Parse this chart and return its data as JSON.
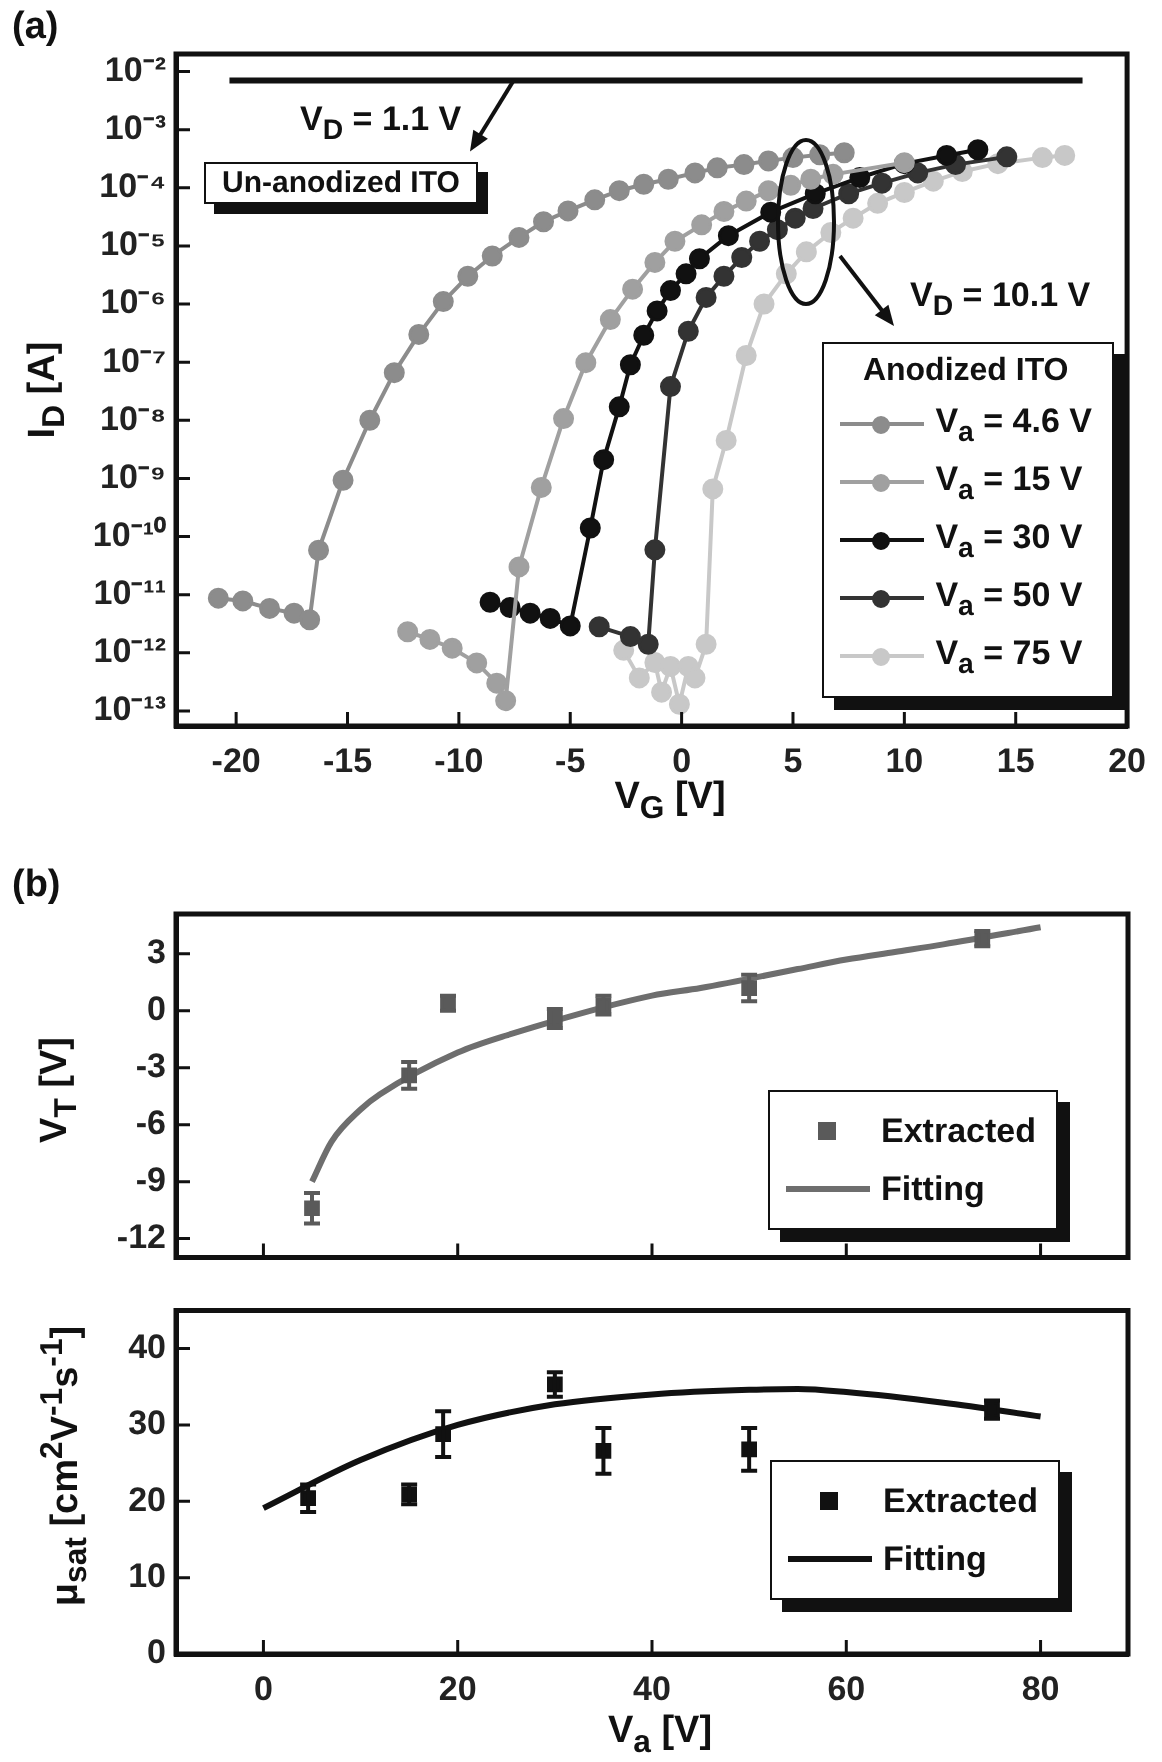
{
  "chart_data": [
    {
      "type": "line",
      "xlabel": "V$_{G}$ [V]",
      "ylabel": "I$_{D}$ [A]",
      "legend_title": "Anodized ITO",
      "legend": "right",
      "log": "y",
      "marker": "circle",
      "xlim": [
        -22.7,
        20
      ],
      "xticks": [
        -20,
        -15,
        -10,
        -5,
        0,
        5,
        10,
        15,
        20
      ],
      "ylim": [
        5.5e-14,
        0.02
      ],
      "yticks": [
        {
          "value": 0.01,
          "label": "10⁻²"
        },
        {
          "value": 0.001,
          "label": "10⁻³"
        },
        {
          "value": 0.0001,
          "label": "10⁻⁴"
        },
        {
          "value": 1e-05,
          "label": "10⁻⁵"
        },
        {
          "value": 1e-06,
          "label": "10⁻⁶"
        },
        {
          "value": 1e-07,
          "label": "10⁻⁷"
        },
        {
          "value": 1e-08,
          "label": "10⁻⁸"
        },
        {
          "value": 1e-09,
          "label": "10⁻⁹"
        },
        {
          "value": 1e-10,
          "label": "10⁻¹⁰"
        },
        {
          "value": 1e-11,
          "label": "10⁻¹¹"
        },
        {
          "value": 1e-12,
          "label": "10⁻¹²"
        },
        {
          "value": 1e-13,
          "label": "10⁻¹³"
        }
      ],
      "annotations": [
        "(a)",
        {
          "text": "V$_{D}$ = 1.1 V",
          "x": -7.7,
          "y": 0.007
        },
        "Un-anodized ITO",
        "V$_{D}$ = 10.1 V"
      ],
      "series": [
        {
          "color": "#111111",
          "marker": "none",
          "x": [
            -20.3,
            18
          ],
          "values": [
            0.007,
            0.007
          ]
        },
        {
          "name": "V$_{a}$ = 4.6 V",
          "color": "#8c8c8c",
          "x": [
            -20.8,
            -19.7,
            -18.5,
            -17.4,
            -16.7,
            -16.3,
            -15.2,
            -14.0,
            -12.9,
            -11.8,
            -10.7,
            -9.6,
            -8.5,
            -7.3,
            -6.2,
            -5.1,
            -3.9,
            -2.8,
            -1.7,
            -0.6,
            0.6,
            1.6,
            2.8,
            3.9,
            5.0,
            6.2,
            7.3
          ],
          "values": [
            8.7e-12,
            7.8e-12,
            5.8e-12,
            4.8e-12,
            3.7e-12,
            5.8e-11,
            9.3e-10,
            1e-08,
            6.6e-08,
            3e-07,
            1.1e-06,
            3e-06,
            6.7e-06,
            1.4e-05,
            2.6e-05,
            4e-05,
            6.2e-05,
            8.9e-05,
            0.000115,
            0.00014,
            0.00018,
            0.00022,
            0.00025,
            0.00029,
            0.00033,
            0.00037,
            0.0004
          ]
        },
        {
          "name": "V$_{a}$ = 15 V",
          "color": "#a0a0a0",
          "x": [
            -12.3,
            -11.3,
            -10.3,
            -9.2,
            -8.3,
            -7.9,
            -7.3,
            -6.3,
            -5.3,
            -4.3,
            -3.2,
            -2.2,
            -1.2,
            -0.3,
            0.9,
            1.9,
            2.9,
            3.9,
            4.9,
            5.8,
            6.8,
            10.0
          ],
          "values": [
            2.3e-12,
            1.7e-12,
            1.2e-12,
            6.7e-13,
            3e-13,
            1.5e-13,
            3e-11,
            7e-10,
            1.07e-08,
            9.8e-08,
            5.4e-07,
            1.8e-06,
            5.2e-06,
            1.2e-05,
            2.3e-05,
            3.9e-05,
            5.9e-05,
            8.9e-05,
            0.00011,
            0.00014,
            0.00017,
            0.00027
          ]
        },
        {
          "name": "V$_{a}$ = 30 V",
          "color": "#111111",
          "x": [
            -8.6,
            -7.7,
            -6.8,
            -5.9,
            -5.0,
            -4.1,
            -3.5,
            -2.8,
            -2.3,
            -1.7,
            -1.1,
            -0.5,
            0.2,
            0.8,
            2.1,
            4.0,
            6.0,
            8.0,
            10.0,
            11.9,
            13.3
          ],
          "values": [
            7.4e-12,
            6e-12,
            4.8e-12,
            3.9e-12,
            2.9e-12,
            1.4e-10,
            2.1e-09,
            1.7e-08,
            9e-08,
            2.9e-07,
            7.6e-07,
            1.7e-06,
            3.3e-06,
            6e-06,
            1.5e-05,
            3.8e-05,
            7.9e-05,
            0.00015,
            0.00026,
            0.00036,
            0.00045
          ]
        },
        {
          "name": "V$_{a}$ = 50 V",
          "color": "#333333",
          "x": [
            -3.7,
            -2.3,
            -1.5,
            -1.2,
            -0.5,
            0.3,
            1.1,
            1.9,
            2.7,
            3.5,
            4.3,
            5.1,
            5.9,
            7.5,
            9.0,
            10.6,
            12.3,
            14.6
          ],
          "values": [
            2.8e-12,
            1.9e-12,
            1.4e-12,
            5.9e-11,
            3.8e-08,
            3.4e-07,
            1.3e-06,
            3e-06,
            6.3e-06,
            1.2e-05,
            1.9e-05,
            3e-05,
            4.4e-05,
            7.9e-05,
            0.00012,
            0.00018,
            0.00025,
            0.00034
          ]
        },
        {
          "name": "V$_{a}$ = 75 V",
          "color": "#c8c8c8",
          "x": [
            -2.6,
            -1.9,
            -1.2,
            -0.9,
            -0.5,
            -0.1,
            0.3,
            0.6,
            1.1,
            1.4,
            2.0,
            2.9,
            3.7,
            4.7,
            5.6,
            6.7,
            7.7,
            8.8,
            10.0,
            11.3,
            12.6,
            14.2,
            16.2,
            17.2
          ],
          "values": [
            1.1e-12,
            3.7e-13,
            6.8e-13,
            2.1e-13,
            5.8e-13,
            1.3e-13,
            5.8e-13,
            3.7e-13,
            1.4e-12,
            6.6e-10,
            4.5e-09,
            1.3e-07,
            1e-06,
            3.3e-06,
            7.9e-06,
            1.7e-05,
            3e-05,
            5.4e-05,
            8.3e-05,
            0.00013,
            0.00019,
            0.00026,
            0.00033,
            0.00036
          ]
        }
      ]
    },
    {
      "type": "scatter",
      "ylabel": "V$_{T}$ [V]",
      "legend": "bottom right",
      "tick_labels": "y",
      "xlim": [
        -9,
        89
      ],
      "xticks": [
        0,
        20,
        40,
        60,
        80
      ],
      "ylim": [
        -13,
        5.1
      ],
      "yticks": [
        -12,
        -9,
        -6,
        -3,
        0,
        3
      ],
      "annotations": [
        "(b)"
      ],
      "series": [
        {
          "type": "scatter",
          "name": "Extracted",
          "color": "#5a5a5a",
          "marker": "square",
          "x": [
            5,
            15,
            19,
            30,
            35,
            50,
            74
          ],
          "values": [
            -10.4,
            -3.4,
            0.4,
            -0.4,
            0.3,
            1.2,
            3.8
          ],
          "errors": [
            0.8,
            0.7,
            0.4,
            0.5,
            0.5,
            0.7,
            0.4
          ]
        },
        {
          "type": "line",
          "name": "Fitting",
          "color": "#6e6e6e",
          "marker": "none",
          "x": [
            5,
            7,
            10,
            12,
            20,
            25,
            40,
            45,
            55,
            60,
            65,
            70,
            80
          ],
          "values": [
            -9,
            -6.9,
            -5.2,
            -4.4,
            -2.2,
            -1.3,
            0.8,
            1.2,
            2.2,
            2.7,
            3.1,
            3.5,
            4.4
          ]
        }
      ]
    },
    {
      "type": "scatter",
      "xlabel": "V$_{a}$ [V]",
      "ylabel": "μ$_{sat}$ [cm$^{2}$V$^{-1}$s$^{-1}$]",
      "legend": "bottom right",
      "xlim": [
        -9,
        89
      ],
      "xticks": [
        0,
        20,
        40,
        60,
        80
      ],
      "ylim": [
        0,
        45
      ],
      "yticks": [
        0,
        10,
        20,
        30,
        40
      ],
      "series": [
        {
          "type": "scatter",
          "name": "Extracted",
          "color": "#111111",
          "marker": "square",
          "x": [
            4.6,
            15,
            18.5,
            30,
            35,
            50,
            75
          ],
          "values": [
            20.4,
            20.9,
            28.8,
            35.3,
            26.6,
            26.8,
            32.0
          ],
          "errors": [
            1.8,
            1.3,
            3,
            1.6,
            3,
            2.8,
            1.2
          ]
        },
        {
          "type": "line",
          "name": "Fitting",
          "color": "#111111",
          "marker": "none",
          "x": [
            0,
            10,
            20,
            30,
            40,
            50,
            55,
            60,
            70,
            80
          ],
          "values": [
            19.1,
            25.4,
            30,
            32.7,
            34,
            34.6,
            34.7,
            34.3,
            32.9,
            31.1
          ]
        }
      ]
    }
  ]
}
